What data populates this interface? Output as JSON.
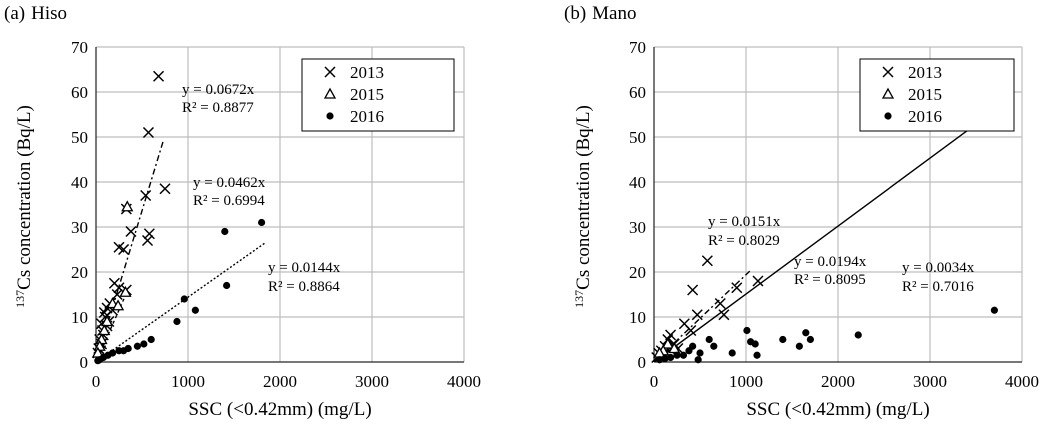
{
  "panels": [
    {
      "letter": "(a)",
      "name": "Hiso",
      "chart_data": {
        "type": "scatter",
        "title": "",
        "xlabel": "SSC (<0.42mm) (mg/L)",
        "ylabel_sup": "137",
        "ylabel": "Cs concentration (Bq/L)",
        "xlim": [
          0,
          4000
        ],
        "ylim": [
          0,
          70
        ],
        "xticks": [
          0,
          1000,
          2000,
          3000,
          4000
        ],
        "yticks": [
          0,
          10,
          20,
          30,
          40,
          50,
          60,
          70
        ],
        "grid": true,
        "legend_position": "top-right",
        "series": [
          {
            "name": "2013",
            "marker": "cross",
            "points": [
              [
                680,
                63.5
              ],
              [
                570,
                51
              ],
              [
                750,
                38.5
              ],
              [
                540,
                37
              ],
              [
                330,
                34
              ],
              [
                580,
                28.5
              ],
              [
                560,
                27
              ],
              [
                380,
                29
              ],
              [
                250,
                25.5
              ],
              [
                300,
                25
              ],
              [
                200,
                17.5
              ],
              [
                250,
                16.5
              ],
              [
                330,
                16
              ],
              [
                230,
                15
              ],
              [
                150,
                13
              ],
              [
                120,
                12
              ],
              [
                180,
                11.5
              ],
              [
                90,
                11
              ],
              [
                100,
                10
              ],
              [
                140,
                9
              ],
              [
                60,
                8.5
              ],
              [
                120,
                8
              ],
              [
                70,
                7
              ],
              [
                80,
                6
              ],
              [
                40,
                5
              ],
              [
                60,
                4
              ],
              [
                30,
                3
              ],
              [
                20,
                2
              ],
              [
                50,
                2.5
              ]
            ]
          },
          {
            "name": "2015",
            "marker": "triangle",
            "points": [
              [
                340,
                34.5
              ],
              [
                320,
                15.5
              ],
              [
                180,
                13
              ],
              [
                240,
                12.5
              ],
              [
                120,
                9
              ],
              [
                90,
                7
              ],
              [
                60,
                5
              ],
              [
                40,
                3.5
              ],
              [
                20,
                2
              ]
            ]
          },
          {
            "name": "2016",
            "marker": "dot",
            "points": [
              [
                1800,
                31
              ],
              [
                1400,
                29
              ],
              [
                1420,
                17
              ],
              [
                960,
                14
              ],
              [
                1080,
                11.5
              ],
              [
                880,
                9
              ],
              [
                600,
                5
              ],
              [
                520,
                4
              ],
              [
                450,
                3.5
              ],
              [
                350,
                3
              ],
              [
                300,
                2.5
              ],
              [
                250,
                2.5
              ],
              [
                180,
                2
              ],
              [
                130,
                1.5
              ],
              [
                80,
                1
              ],
              [
                40,
                0.5
              ],
              [
                20,
                0.3
              ]
            ]
          }
        ],
        "fits": [
          {
            "slope": 0.0672,
            "x_max": 730,
            "dash": "6,3,2,3",
            "eq": "y = 0.0672x",
            "r2": "R² = 0.8877"
          },
          {
            "slope": 0.0462,
            "x_max": 330,
            "dash": "3,3",
            "eq": "y = 0.0462x",
            "r2": "R² = 0.6994"
          },
          {
            "slope": 0.0144,
            "x_max": 1840,
            "dash": "2,2",
            "eq": "y = 0.0144x",
            "r2": "R² = 0.8864"
          }
        ]
      }
    },
    {
      "letter": "(b)",
      "name": "Mano",
      "chart_data": {
        "type": "scatter",
        "title": "",
        "xlabel": "SSC (<0.42mm) (mg/L)",
        "ylabel_sup": "137",
        "ylabel": "Cs concentration (Bq/L)",
        "xlim": [
          0,
          4000
        ],
        "ylim": [
          0,
          70
        ],
        "xticks": [
          0,
          1000,
          2000,
          3000,
          4000
        ],
        "yticks": [
          0,
          10,
          20,
          30,
          40,
          50,
          60,
          70
        ],
        "grid": true,
        "legend_position": "top-right",
        "series": [
          {
            "name": "2013",
            "marker": "cross",
            "points": [
              [
                580,
                22.5
              ],
              [
                1130,
                18
              ],
              [
                900,
                16.5
              ],
              [
                420,
                16
              ],
              [
                720,
                13
              ],
              [
                760,
                10.5
              ],
              [
                470,
                10.5
              ],
              [
                400,
                7
              ],
              [
                330,
                8.5
              ],
              [
                180,
                6
              ],
              [
                150,
                5
              ],
              [
                220,
                4
              ],
              [
                120,
                3.5
              ],
              [
                260,
                3
              ],
              [
                80,
                2.5
              ],
              [
                50,
                2
              ],
              [
                30,
                1
              ],
              [
                100,
                1.5
              ]
            ]
          },
          {
            "name": "2015",
            "marker": "triangle",
            "points": [
              [
                150,
                4
              ],
              [
                220,
                3
              ],
              [
                100,
                2.5
              ],
              [
                60,
                2
              ]
            ]
          },
          {
            "name": "2016",
            "marker": "dot",
            "points": [
              [
                3700,
                11.5
              ],
              [
                1010,
                7
              ],
              [
                1650,
                6.5
              ],
              [
                1700,
                5
              ],
              [
                2220,
                6
              ],
              [
                1400,
                5
              ],
              [
                1580,
                3.5
              ],
              [
                1100,
                4
              ],
              [
                1050,
                4.5
              ],
              [
                850,
                2
              ],
              [
                650,
                3.5
              ],
              [
                600,
                5
              ],
              [
                500,
                2
              ],
              [
                420,
                3.5
              ],
              [
                380,
                2.5
              ],
              [
                320,
                1.5
              ],
              [
                250,
                1.5
              ],
              [
                180,
                1
              ],
              [
                120,
                0.8
              ],
              [
                60,
                0.5
              ],
              [
                1120,
                1.5
              ],
              [
                480,
                0.5
              ]
            ]
          }
        ],
        "fits": [
          {
            "slope": 0.0151,
            "x_max": 3700,
            "dash": "",
            "eq": "y = 0.0151x",
            "r2": "R² = 0.8029"
          },
          {
            "slope": 0.0194,
            "x_max": 1050,
            "dash": "6,3,2,3",
            "eq": "y = 0.0194x",
            "r2": "R² = 0.8095"
          },
          {
            "slope": 0.0034,
            "x_max": 3700,
            "dash": "",
            "eq": "y = 0.0034x",
            "r2": "R² = 0.7016",
            "hidden_line": true
          }
        ]
      }
    }
  ]
}
